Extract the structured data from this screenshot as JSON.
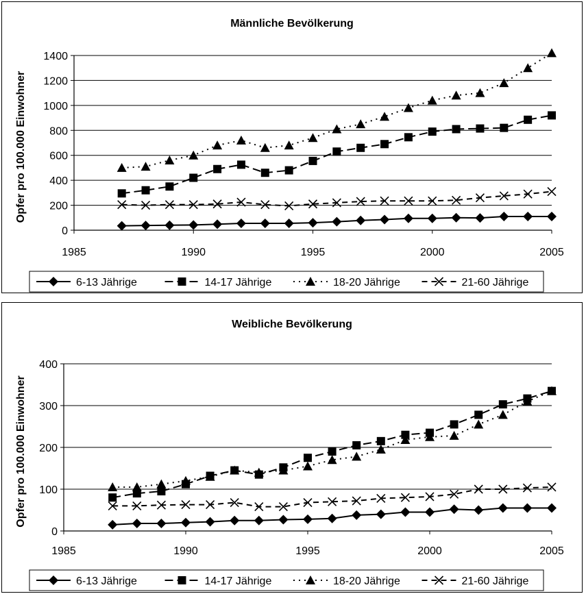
{
  "chart_data": [
    {
      "type": "line",
      "title": "Männliche Bevölkerung",
      "xlabel": "",
      "ylabel": "Opfer pro 100.000 Einwohner",
      "xlim": [
        1985,
        2005
      ],
      "ylim": [
        0,
        1400
      ],
      "xticks": [
        1985,
        1990,
        1995,
        2000,
        2005
      ],
      "yticks": [
        0,
        200,
        400,
        600,
        800,
        1000,
        1200,
        1400
      ],
      "grid": "horizontal",
      "legend_position": "bottom",
      "x": [
        1987,
        1988,
        1989,
        1990,
        1991,
        1992,
        1993,
        1994,
        1995,
        1996,
        1997,
        1998,
        1999,
        2000,
        2001,
        2002,
        2003,
        2004,
        2005
      ],
      "series": [
        {
          "name": "6-13 Jährige",
          "marker": "diamond",
          "dash": "solid",
          "values": [
            35,
            38,
            40,
            42,
            48,
            55,
            55,
            55,
            60,
            68,
            78,
            85,
            95,
            95,
            100,
            98,
            110,
            110,
            110
          ]
        },
        {
          "name": "14-17 Jährige",
          "marker": "square",
          "dash": "longdash",
          "values": [
            295,
            320,
            350,
            420,
            490,
            525,
            460,
            480,
            555,
            630,
            660,
            690,
            745,
            790,
            810,
            815,
            820,
            885,
            920
          ]
        },
        {
          "name": "18-20 Jährige",
          "marker": "triangle",
          "dash": "dotted",
          "values": [
            500,
            510,
            560,
            600,
            680,
            720,
            660,
            680,
            740,
            810,
            850,
            910,
            980,
            1040,
            1080,
            1100,
            1180,
            1300,
            1420
          ]
        },
        {
          "name": "21-60 Jährige",
          "marker": "cross",
          "dash": "dashed",
          "values": [
            205,
            200,
            205,
            205,
            210,
            225,
            205,
            195,
            210,
            220,
            230,
            235,
            235,
            235,
            240,
            260,
            275,
            290,
            310
          ]
        }
      ]
    },
    {
      "type": "line",
      "title": "Weibliche Bevölkerung",
      "xlabel": "",
      "ylabel": "Opfer pro 100.000 Einwohner",
      "xlim": [
        1985,
        2005
      ],
      "ylim": [
        0,
        400
      ],
      "xticks": [
        1985,
        1990,
        1995,
        2000,
        2005
      ],
      "yticks": [
        0,
        100,
        200,
        300,
        400
      ],
      "grid": "horizontal",
      "legend_position": "bottom",
      "x": [
        1987,
        1988,
        1989,
        1990,
        1991,
        1992,
        1993,
        1994,
        1995,
        1996,
        1997,
        1998,
        1999,
        2000,
        2001,
        2002,
        2003,
        2004,
        2005
      ],
      "series": [
        {
          "name": "6-13 Jährige",
          "marker": "diamond",
          "dash": "solid",
          "values": [
            15,
            18,
            18,
            20,
            22,
            25,
            25,
            27,
            28,
            30,
            38,
            40,
            45,
            45,
            52,
            50,
            55,
            55,
            55
          ]
        },
        {
          "name": "14-17 Jährige",
          "marker": "square",
          "dash": "longdash",
          "values": [
            80,
            90,
            95,
            112,
            132,
            145,
            135,
            152,
            175,
            190,
            205,
            215,
            230,
            235,
            255,
            278,
            303,
            317,
            335
          ]
        },
        {
          "name": "18-20 Jährige",
          "marker": "triangle",
          "dash": "dotted",
          "values": [
            105,
            105,
            112,
            120,
            130,
            145,
            140,
            145,
            155,
            170,
            178,
            195,
            218,
            225,
            228,
            255,
            278,
            310,
            335
          ]
        },
        {
          "name": "21-60 Jährige",
          "marker": "cross",
          "dash": "dashed",
          "values": [
            60,
            60,
            62,
            63,
            63,
            68,
            58,
            58,
            68,
            70,
            72,
            78,
            80,
            82,
            88,
            100,
            100,
            103,
            105
          ]
        }
      ]
    }
  ]
}
